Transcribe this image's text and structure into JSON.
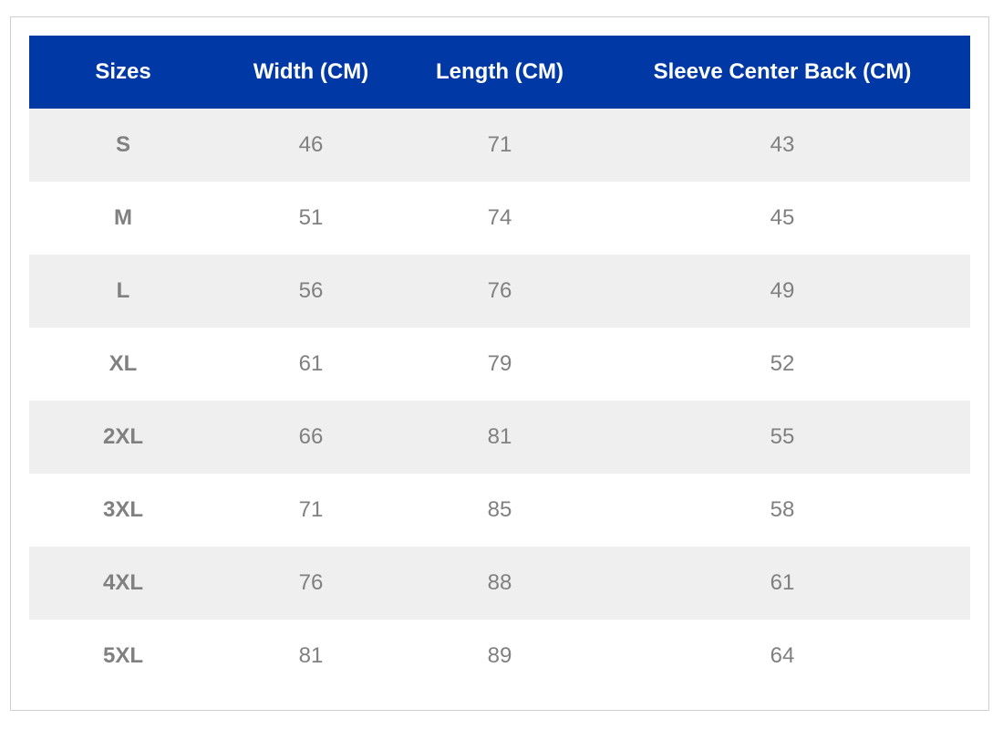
{
  "table": {
    "header": [
      "Sizes",
      "Width (CM)",
      "Length (CM)",
      "Sleeve Center Back (CM)"
    ],
    "rows": [
      [
        "S",
        46,
        71,
        43
      ],
      [
        "M",
        51,
        74,
        45
      ],
      [
        "L",
        56,
        76,
        49
      ],
      [
        "XL",
        61,
        79,
        52
      ],
      [
        "2XL",
        66,
        81,
        55
      ],
      [
        "3XL",
        71,
        85,
        58
      ],
      [
        "4XL",
        76,
        88,
        61
      ],
      [
        "5XL",
        81,
        89,
        64
      ]
    ]
  }
}
